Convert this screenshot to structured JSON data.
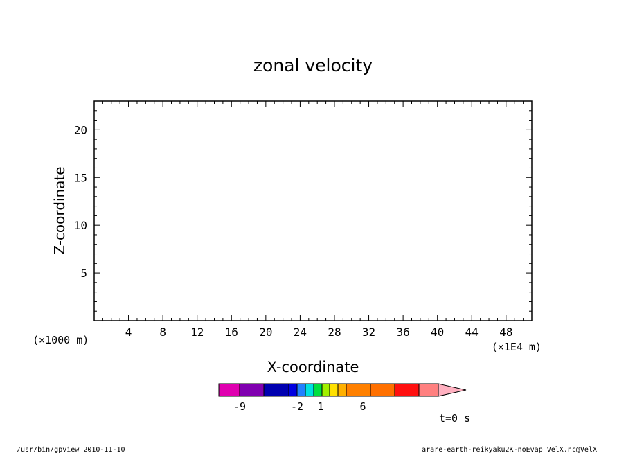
{
  "chart_data": {
    "type": "heatmap",
    "title": "zonal velocity",
    "xlabel": "X-coordinate",
    "ylabel": "Z-coordinate",
    "x_unit": "(×1E4 m)",
    "y_unit": "(×1000 m)",
    "xlim": [
      0,
      51
    ],
    "ylim": [
      0,
      23
    ],
    "x_ticks": [
      4,
      8,
      12,
      16,
      20,
      24,
      28,
      32,
      36,
      40,
      44,
      48
    ],
    "y_ticks": [
      5,
      10,
      15,
      20
    ],
    "grid": false,
    "colorbar": {
      "colors": [
        "#e000b0",
        "#8000b0",
        "#0000b0",
        "#0000e0",
        "#2080ff",
        "#00e0e0",
        "#00e040",
        "#a0f000",
        "#ffe000",
        "#ffb000",
        "#ff8000",
        "#ff7000",
        "#ff1010",
        "#ff8080",
        "#ffb0c0"
      ],
      "labels": [
        "-9",
        "-2",
        "1",
        "6"
      ]
    },
    "time_label": "t=0 s",
    "footer_left": "/usr/bin/gpview   2010-11-10",
    "footer_right": "arare-earth-reikyaku2K-noEvap_VelX.nc@VelX"
  }
}
